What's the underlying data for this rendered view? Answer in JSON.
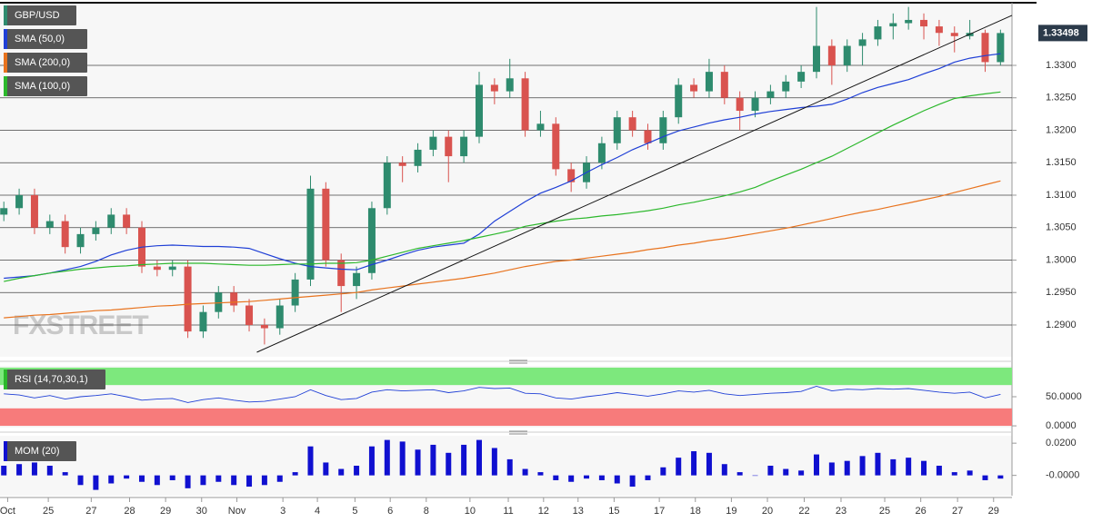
{
  "chart_data": [
    {
      "type": "candlestick",
      "title": "GBP/USD",
      "title_color": "#2e8b6e",
      "watermark": "FXSTREET",
      "up_color": "#2e8b6e",
      "down_color": "#d9534f",
      "grid": true,
      "x": [
        0,
        2,
        4,
        6,
        8,
        10,
        12,
        14,
        16,
        18,
        20,
        22,
        24,
        26,
        28,
        30,
        32,
        34,
        36,
        38,
        40,
        42,
        44,
        46,
        48,
        50,
        52,
        54,
        56,
        58,
        60,
        62,
        64,
        66,
        68,
        70,
        72,
        74,
        76,
        78,
        80,
        82,
        84,
        86,
        88,
        90,
        92,
        94,
        96,
        98,
        100,
        102,
        104,
        106,
        108,
        110,
        112,
        114,
        116,
        118,
        120,
        122,
        124,
        126,
        128,
        130
      ],
      "xlim": [
        -0.5,
        131.5
      ],
      "xticks": [
        {
          "value": 0.5,
          "label": "Oct"
        },
        {
          "value": 5.8,
          "label": "25"
        },
        {
          "value": 11.4,
          "label": "27"
        },
        {
          "value": 16.4,
          "label": "28"
        },
        {
          "value": 21.1,
          "label": "29"
        },
        {
          "value": 25.8,
          "label": "30"
        },
        {
          "value": 30.4,
          "label": "Nov"
        },
        {
          "value": 36.4,
          "label": "3"
        },
        {
          "value": 40.9,
          "label": "4"
        },
        {
          "value": 45.8,
          "label": "5"
        },
        {
          "value": 50.4,
          "label": "6"
        },
        {
          "value": 55.1,
          "label": "8"
        },
        {
          "value": 60.8,
          "label": "10"
        },
        {
          "value": 65.8,
          "label": "11"
        },
        {
          "value": 70.4,
          "label": "12"
        },
        {
          "value": 74.9,
          "label": "13"
        },
        {
          "value": 79.6,
          "label": "15"
        },
        {
          "value": 85.5,
          "label": "17"
        },
        {
          "value": 90.2,
          "label": "18"
        },
        {
          "value": 94.9,
          "label": "19"
        },
        {
          "value": 99.6,
          "label": "20"
        },
        {
          "value": 104.4,
          "label": "22"
        },
        {
          "value": 109.2,
          "label": "23"
        },
        {
          "value": 114.9,
          "label": "25"
        },
        {
          "value": 119.6,
          "label": "26"
        },
        {
          "value": 124.4,
          "label": "27"
        },
        {
          "value": 129.1,
          "label": "29"
        }
      ],
      "ylim": [
        1.28524,
        1.33937
      ],
      "yticks": [
        {
          "value": 1.29,
          "label": "1.2900"
        },
        {
          "value": 1.295,
          "label": "1.2950"
        },
        {
          "value": 1.3,
          "label": "1.3000"
        },
        {
          "value": 1.305,
          "label": "1.3050"
        },
        {
          "value": 1.31,
          "label": "1.3100"
        },
        {
          "value": 1.315,
          "label": "1.3150"
        },
        {
          "value": 1.32,
          "label": "1.3200"
        },
        {
          "value": 1.325,
          "label": "1.3250"
        },
        {
          "value": 1.33,
          "label": "1.3300"
        }
      ],
      "candles": [
        [
          1.307,
          1.309,
          1.306,
          1.308
        ],
        [
          1.308,
          1.311,
          1.307,
          1.31
        ],
        [
          1.31,
          1.311,
          1.304,
          1.305
        ],
        [
          1.305,
          1.307,
          1.304,
          1.306
        ],
        [
          1.306,
          1.307,
          1.301,
          1.302
        ],
        [
          1.302,
          1.305,
          1.301,
          1.304
        ],
        [
          1.304,
          1.306,
          1.303,
          1.305
        ],
        [
          1.305,
          1.308,
          1.304,
          1.307
        ],
        [
          1.307,
          1.308,
          1.304,
          1.305
        ],
        [
          1.305,
          1.306,
          1.298,
          1.299
        ],
        [
          1.299,
          1.3,
          1.2975,
          1.2985
        ],
        [
          1.2985,
          1.3,
          1.2975,
          1.299
        ],
        [
          1.299,
          1.3,
          1.288,
          1.289
        ],
        [
          1.289,
          1.293,
          1.288,
          1.292
        ],
        [
          1.292,
          1.296,
          1.291,
          1.295
        ],
        [
          1.295,
          1.296,
          1.292,
          1.293
        ],
        [
          1.293,
          1.294,
          1.289,
          1.29
        ],
        [
          1.29,
          1.291,
          1.287,
          1.2895
        ],
        [
          1.2895,
          1.294,
          1.2885,
          1.293
        ],
        [
          1.293,
          1.298,
          1.292,
          1.297
        ],
        [
          1.297,
          1.313,
          1.296,
          1.311
        ],
        [
          1.311,
          1.312,
          1.299,
          1.3
        ],
        [
          1.3,
          1.301,
          1.292,
          1.296
        ],
        [
          1.296,
          1.299,
          1.294,
          1.298
        ],
        [
          1.298,
          1.309,
          1.297,
          1.308
        ],
        [
          1.308,
          1.316,
          1.307,
          1.315
        ],
        [
          1.315,
          1.316,
          1.312,
          1.3145
        ],
        [
          1.3145,
          1.318,
          1.3135,
          1.317
        ],
        [
          1.317,
          1.32,
          1.316,
          1.319
        ],
        [
          1.319,
          1.32,
          1.312,
          1.316
        ],
        [
          1.316,
          1.32,
          1.315,
          1.319
        ],
        [
          1.319,
          1.329,
          1.318,
          1.327
        ],
        [
          1.327,
          1.328,
          1.324,
          1.326
        ],
        [
          1.326,
          1.331,
          1.325,
          1.328
        ],
        [
          1.328,
          1.329,
          1.319,
          1.32
        ],
        [
          1.32,
          1.323,
          1.319,
          1.321
        ],
        [
          1.321,
          1.322,
          1.313,
          1.314
        ],
        [
          1.314,
          1.315,
          1.3105,
          1.312
        ],
        [
          1.312,
          1.316,
          1.311,
          1.315
        ],
        [
          1.315,
          1.319,
          1.314,
          1.318
        ],
        [
          1.318,
          1.323,
          1.317,
          1.322
        ],
        [
          1.322,
          1.323,
          1.319,
          1.32
        ],
        [
          1.32,
          1.321,
          1.317,
          1.318
        ],
        [
          1.318,
          1.323,
          1.317,
          1.322
        ],
        [
          1.322,
          1.328,
          1.321,
          1.327
        ],
        [
          1.327,
          1.328,
          1.325,
          1.326
        ],
        [
          1.326,
          1.331,
          1.325,
          1.329
        ],
        [
          1.329,
          1.33,
          1.324,
          1.325
        ],
        [
          1.325,
          1.326,
          1.32,
          1.323
        ],
        [
          1.323,
          1.326,
          1.322,
          1.325
        ],
        [
          1.325,
          1.327,
          1.324,
          1.326
        ],
        [
          1.326,
          1.3285,
          1.325,
          1.3275
        ],
        [
          1.3275,
          1.33,
          1.3265,
          1.329
        ],
        [
          1.329,
          1.339,
          1.328,
          1.333
        ],
        [
          1.333,
          1.334,
          1.327,
          1.33
        ],
        [
          1.33,
          1.334,
          1.329,
          1.333
        ],
        [
          1.333,
          1.335,
          1.33,
          1.334
        ],
        [
          1.334,
          1.337,
          1.333,
          1.336
        ],
        [
          1.336,
          1.338,
          1.334,
          1.3365
        ],
        [
          1.3365,
          1.339,
          1.3355,
          1.337
        ],
        [
          1.337,
          1.338,
          1.334,
          1.336
        ],
        [
          1.336,
          1.337,
          1.333,
          1.335
        ],
        [
          1.335,
          1.336,
          1.332,
          1.3345
        ],
        [
          1.3345,
          1.337,
          1.334,
          1.335
        ],
        [
          1.335,
          1.3355,
          1.329,
          1.3305
        ],
        [
          1.3305,
          1.3355,
          1.33,
          1.33498
        ]
      ],
      "series": [
        {
          "name": "SMA (50,0)",
          "color": "#1f3fd6",
          "values": [
            1.2972,
            1.2974,
            1.2976,
            1.298,
            1.2985,
            1.299,
            1.2998,
            1.3008,
            1.3015,
            1.302,
            1.3022,
            1.3023,
            1.3022,
            1.3021,
            1.3021,
            1.302,
            1.3018,
            1.301,
            1.3002,
            1.2995,
            1.299,
            1.2988,
            1.2986,
            1.2985,
            1.2993,
            1.3,
            1.3008,
            1.3015,
            1.302,
            1.3023,
            1.3026,
            1.304,
            1.306,
            1.3075,
            1.309,
            1.3103,
            1.3112,
            1.3122,
            1.3135,
            1.3147,
            1.3158,
            1.317,
            1.318,
            1.319,
            1.3199,
            1.3205,
            1.3211,
            1.3216,
            1.322,
            1.3225,
            1.3229,
            1.3232,
            1.3235,
            1.3237,
            1.324,
            1.3248,
            1.3258,
            1.3266,
            1.3272,
            1.3278,
            1.3287,
            1.3295,
            1.3305,
            1.3311,
            1.3315,
            1.3318
          ]
        },
        {
          "name": "SMA (200,0)",
          "color": "#e8731e",
          "values": [
            1.2911,
            1.2913,
            1.2915,
            1.2916,
            1.2918,
            1.292,
            1.2922,
            1.2923,
            1.2925,
            1.2927,
            1.2929,
            1.293,
            1.2932,
            1.2933,
            1.2934,
            1.2935,
            1.2936,
            1.2938,
            1.294,
            1.2942,
            1.2944,
            1.2946,
            1.2948,
            1.295,
            1.2954,
            1.2957,
            1.296,
            1.2963,
            1.2966,
            1.2969,
            1.2972,
            1.2976,
            1.298,
            1.2985,
            1.299,
            1.2994,
            1.2998,
            1.3,
            1.3003,
            1.3006,
            1.3009,
            1.3012,
            1.3016,
            1.3019,
            1.3023,
            1.3026,
            1.303,
            1.3033,
            1.3037,
            1.3041,
            1.3045,
            1.3049,
            1.3054,
            1.3059,
            1.3064,
            1.3069,
            1.3074,
            1.3078,
            1.3083,
            1.3088,
            1.3093,
            1.3098,
            1.3104,
            1.311,
            1.3116,
            1.3122
          ]
        },
        {
          "name": "SMA (100,0)",
          "color": "#2cb82c",
          "values": [
            1.2967,
            1.2972,
            1.2976,
            1.298,
            1.2983,
            1.2986,
            1.2988,
            1.299,
            1.2991,
            1.2993,
            1.2994,
            1.2995,
            1.2995,
            1.2995,
            1.2994,
            1.2993,
            1.2992,
            1.2992,
            1.2993,
            1.2994,
            1.2994,
            1.2995,
            1.2995,
            1.2996,
            1.3,
            1.3006,
            1.3012,
            1.3018,
            1.3022,
            1.3026,
            1.303,
            1.3035,
            1.304,
            1.3045,
            1.3052,
            1.3056,
            1.306,
            1.3063,
            1.3065,
            1.3068,
            1.307,
            1.3073,
            1.3076,
            1.308,
            1.3085,
            1.3089,
            1.3094,
            1.3099,
            1.3105,
            1.3112,
            1.3122,
            1.3131,
            1.314,
            1.315,
            1.316,
            1.3172,
            1.3184,
            1.3196,
            1.3208,
            1.3219,
            1.323,
            1.324,
            1.3249,
            1.3253,
            1.3256,
            1.3259
          ]
        }
      ],
      "trendline": {
        "color": "#111111",
        "x": [
          33,
          131.5
        ],
        "y": [
          1.2858,
          1.3377
        ]
      },
      "last_price_color": "#2b3a4a"
    },
    {
      "type": "line",
      "title": "RSI (14,70,30,1)",
      "color": "#1f3fd6",
      "title_color": "#2cb82c",
      "x": [
        0,
        2,
        4,
        6,
        8,
        10,
        12,
        14,
        16,
        18,
        20,
        22,
        24,
        26,
        28,
        30,
        32,
        34,
        36,
        38,
        40,
        42,
        44,
        46,
        48,
        50,
        52,
        54,
        56,
        58,
        60,
        62,
        64,
        66,
        68,
        70,
        72,
        74,
        76,
        78,
        80,
        82,
        84,
        86,
        88,
        90,
        92,
        94,
        96,
        98,
        100,
        102,
        104,
        106,
        108,
        110,
        112,
        114,
        116,
        118,
        120,
        122,
        124,
        126,
        128,
        130
      ],
      "xlim": [
        -0.5,
        131.5
      ],
      "ylim": [
        -3,
        103
      ],
      "yticks": [
        {
          "value": 50,
          "label": "50.0000"
        },
        {
          "value": 0,
          "label": "0.0000"
        }
      ],
      "bands": [
        {
          "from": 70,
          "to": 100,
          "color": "#7de87d"
        },
        {
          "from": 0,
          "to": 30,
          "color": "#f77b7b"
        }
      ],
      "values": [
        55,
        53,
        48,
        52,
        46,
        50,
        52,
        55,
        50,
        44,
        46,
        47,
        40,
        45,
        48,
        44,
        41,
        42,
        46,
        50,
        62,
        52,
        45,
        47,
        58,
        62,
        60,
        61,
        62,
        57,
        60,
        66,
        64,
        65,
        56,
        55,
        48,
        46,
        50,
        53,
        57,
        54,
        51,
        55,
        60,
        58,
        61,
        55,
        52,
        54,
        56,
        57,
        59,
        68,
        60,
        63,
        62,
        64,
        63,
        64,
        61,
        58,
        56,
        58,
        48,
        54
      ]
    },
    {
      "type": "bar",
      "title": "MOM (20)",
      "color": "#1010d0",
      "title_color": "#1010d0",
      "x": [
        0,
        2,
        4,
        6,
        8,
        10,
        12,
        14,
        16,
        18,
        20,
        22,
        24,
        26,
        28,
        30,
        32,
        34,
        36,
        38,
        40,
        42,
        44,
        46,
        48,
        50,
        52,
        54,
        56,
        58,
        60,
        62,
        64,
        66,
        68,
        70,
        72,
        74,
        76,
        78,
        80,
        82,
        84,
        86,
        88,
        90,
        92,
        94,
        96,
        98,
        100,
        102,
        104,
        106,
        108,
        110,
        112,
        114,
        116,
        118,
        120,
        122,
        124,
        126,
        128,
        130
      ],
      "xlim": [
        -0.5,
        131.5
      ],
      "ylim": [
        -0.0126,
        0.0246
      ],
      "yticks": [
        {
          "value": 0.02,
          "label": "0.0200"
        },
        {
          "value": 0,
          "label": "-0.0000"
        }
      ],
      "values": [
        0.006,
        0.007,
        0.008,
        0.006,
        0.002,
        -0.006,
        -0.009,
        -0.005,
        -0.002,
        -0.004,
        -0.006,
        -0.003,
        -0.008,
        -0.006,
        -0.004,
        -0.006,
        -0.007,
        -0.006,
        -0.004,
        0.002,
        0.018,
        0.008,
        0.004,
        0.006,
        0.018,
        0.022,
        0.021,
        0.016,
        0.019,
        0.014,
        0.019,
        0.022,
        0.017,
        0.01,
        0.004,
        0.002,
        -0.003,
        -0.004,
        -0.002,
        -0.003,
        -0.005,
        -0.007,
        -0.003,
        0.005,
        0.011,
        0.015,
        0.014,
        0.007,
        0.002,
        0.0,
        0.006,
        0.004,
        0.003,
        0.013,
        0.008,
        0.009,
        0.012,
        0.014,
        0.01,
        0.011,
        0.009,
        0.006,
        0.002,
        0.003,
        -0.003,
        -0.002
      ]
    }
  ]
}
